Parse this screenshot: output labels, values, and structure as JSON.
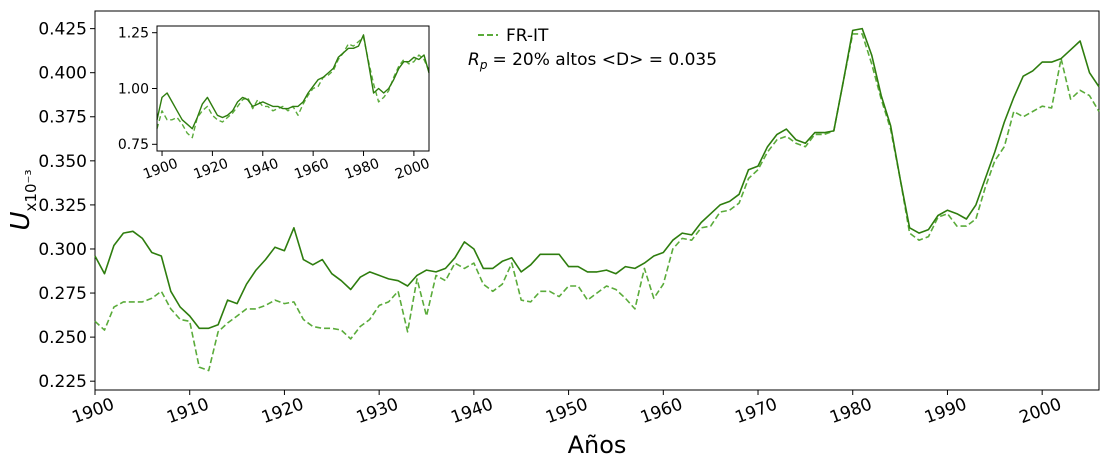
{
  "chart_data": [
    {
      "type": "line",
      "xlabel": "Años",
      "ylabel_main": "U",
      "ylabel_sub": "x10⁻³",
      "xlim": [
        1900,
        2006
      ],
      "ylim": [
        0.22,
        0.435
      ],
      "xticks": [
        1900,
        1910,
        1920,
        1930,
        1940,
        1950,
        1960,
        1970,
        1980,
        1990,
        2000
      ],
      "yticks": [
        "0.225",
        "0.250",
        "0.275",
        "0.300",
        "0.325",
        "0.350",
        "0.375",
        "0.400",
        "0.425"
      ],
      "legend": {
        "label": "FR-IT",
        "placement": "top-center"
      },
      "annotation": {
        "symbol": "R",
        "subscript": "p",
        "text": "= 20% altos  <D> = 0.035"
      },
      "colors": {
        "solid": "#2e7d0e",
        "dashed": "#5aab3a"
      },
      "series": [
        {
          "name": "FR-IT",
          "style": "dashed",
          "x": [
            1900,
            1901,
            1902,
            1903,
            1904,
            1905,
            1906,
            1907,
            1908,
            1909,
            1910,
            1911,
            1912,
            1913,
            1914,
            1915,
            1916,
            1917,
            1918,
            1919,
            1920,
            1921,
            1922,
            1923,
            1924,
            1925,
            1926,
            1927,
            1928,
            1929,
            1930,
            1931,
            1932,
            1933,
            1934,
            1935,
            1936,
            1937,
            1938,
            1939,
            1940,
            1941,
            1942,
            1943,
            1944,
            1945,
            1946,
            1947,
            1948,
            1949,
            1950,
            1951,
            1952,
            1953,
            1954,
            1955,
            1956,
            1957,
            1958,
            1959,
            1960,
            1961,
            1962,
            1963,
            1964,
            1965,
            1966,
            1967,
            1968,
            1969,
            1970,
            1971,
            1972,
            1973,
            1974,
            1975,
            1976,
            1977,
            1978,
            1979,
            1980,
            1981,
            1982,
            1983,
            1984,
            1985,
            1986,
            1987,
            1988,
            1989,
            1990,
            1991,
            1992,
            1993,
            1994,
            1995,
            1996,
            1997,
            1998,
            1999,
            2000,
            2001,
            2002,
            2003,
            2004,
            2005,
            2006
          ],
          "values": [
            0.259,
            0.254,
            0.267,
            0.27,
            0.27,
            0.27,
            0.272,
            0.276,
            0.266,
            0.26,
            0.259,
            0.233,
            0.231,
            0.253,
            0.258,
            0.262,
            0.266,
            0.266,
            0.268,
            0.271,
            0.269,
            0.27,
            0.26,
            0.256,
            0.255,
            0.255,
            0.254,
            0.249,
            0.256,
            0.26,
            0.268,
            0.27,
            0.276,
            0.253,
            0.283,
            0.262,
            0.285,
            0.282,
            0.292,
            0.289,
            0.292,
            0.28,
            0.276,
            0.28,
            0.292,
            0.271,
            0.27,
            0.276,
            0.276,
            0.273,
            0.279,
            0.279,
            0.271,
            0.275,
            0.279,
            0.277,
            0.272,
            0.266,
            0.289,
            0.272,
            0.28,
            0.3,
            0.306,
            0.305,
            0.312,
            0.313,
            0.321,
            0.322,
            0.326,
            0.34,
            0.345,
            0.355,
            0.362,
            0.364,
            0.36,
            0.358,
            0.365,
            0.365,
            0.367,
            0.395,
            0.422,
            0.422,
            0.405,
            0.385,
            0.368,
            0.34,
            0.309,
            0.305,
            0.307,
            0.318,
            0.32,
            0.313,
            0.313,
            0.317,
            0.335,
            0.35,
            0.358,
            0.378,
            0.375,
            0.378,
            0.381,
            0.38,
            0.408,
            0.385,
            0.39,
            0.387,
            0.378
          ]
        },
        {
          "name": "",
          "style": "solid",
          "x": [
            1900,
            1901,
            1902,
            1903,
            1904,
            1905,
            1906,
            1907,
            1908,
            1909,
            1910,
            1911,
            1912,
            1913,
            1914,
            1915,
            1916,
            1917,
            1918,
            1919,
            1920,
            1921,
            1922,
            1923,
            1924,
            1925,
            1926,
            1927,
            1928,
            1929,
            1930,
            1931,
            1932,
            1933,
            1934,
            1935,
            1936,
            1937,
            1938,
            1939,
            1940,
            1941,
            1942,
            1943,
            1944,
            1945,
            1946,
            1947,
            1948,
            1949,
            1950,
            1951,
            1952,
            1953,
            1954,
            1955,
            1956,
            1957,
            1958,
            1959,
            1960,
            1961,
            1962,
            1963,
            1964,
            1965,
            1966,
            1967,
            1968,
            1969,
            1970,
            1971,
            1972,
            1973,
            1974,
            1975,
            1976,
            1977,
            1978,
            1979,
            1980,
            1981,
            1982,
            1983,
            1984,
            1985,
            1986,
            1987,
            1988,
            1989,
            1990,
            1991,
            1992,
            1993,
            1994,
            1995,
            1996,
            1997,
            1998,
            1999,
            2000,
            2001,
            2002,
            2003,
            2004,
            2005,
            2006
          ],
          "values": [
            0.296,
            0.286,
            0.302,
            0.309,
            0.31,
            0.306,
            0.298,
            0.296,
            0.276,
            0.267,
            0.262,
            0.255,
            0.255,
            0.257,
            0.271,
            0.269,
            0.28,
            0.288,
            0.294,
            0.301,
            0.299,
            0.312,
            0.294,
            0.291,
            0.294,
            0.286,
            0.282,
            0.277,
            0.284,
            0.287,
            0.285,
            0.283,
            0.282,
            0.279,
            0.285,
            0.288,
            0.287,
            0.289,
            0.295,
            0.304,
            0.3,
            0.289,
            0.289,
            0.293,
            0.295,
            0.287,
            0.291,
            0.297,
            0.297,
            0.297,
            0.29,
            0.29,
            0.287,
            0.287,
            0.288,
            0.286,
            0.29,
            0.289,
            0.292,
            0.296,
            0.298,
            0.305,
            0.309,
            0.308,
            0.315,
            0.32,
            0.325,
            0.327,
            0.331,
            0.345,
            0.347,
            0.358,
            0.365,
            0.368,
            0.362,
            0.36,
            0.366,
            0.366,
            0.367,
            0.395,
            0.424,
            0.425,
            0.41,
            0.387,
            0.37,
            0.34,
            0.312,
            0.309,
            0.311,
            0.319,
            0.322,
            0.32,
            0.317,
            0.325,
            0.34,
            0.355,
            0.372,
            0.386,
            0.398,
            0.401,
            0.406,
            0.406,
            0.408,
            0.413,
            0.418,
            0.4,
            0.392
          ]
        }
      ]
    },
    {
      "type": "line",
      "role": "inset",
      "xlim": [
        1898,
        2006
      ],
      "ylim": [
        0.72,
        1.28
      ],
      "xticks": [
        1900,
        1920,
        1940,
        1960,
        1980,
        2000
      ],
      "yticks": [
        "0.75",
        "1.00",
        "1.25"
      ],
      "series": [
        {
          "name": "",
          "style": "dashed",
          "x": [
            1898,
            1900,
            1902,
            1904,
            1906,
            1908,
            1910,
            1912,
            1914,
            1916,
            1918,
            1920,
            1922,
            1924,
            1926,
            1928,
            1930,
            1932,
            1934,
            1936,
            1938,
            1940,
            1942,
            1944,
            1946,
            1948,
            1950,
            1952,
            1954,
            1956,
            1958,
            1960,
            1962,
            1964,
            1966,
            1968,
            1970,
            1972,
            1974,
            1976,
            1978,
            1980,
            1982,
            1984,
            1986,
            1988,
            1990,
            1992,
            1994,
            1996,
            1998,
            2000,
            2002,
            2004,
            2006
          ],
          "values": [
            0.82,
            0.9,
            0.86,
            0.86,
            0.87,
            0.84,
            0.8,
            0.78,
            0.87,
            0.9,
            0.92,
            0.88,
            0.86,
            0.85,
            0.87,
            0.89,
            0.92,
            0.95,
            0.96,
            0.91,
            0.95,
            0.92,
            0.92,
            0.9,
            0.91,
            0.92,
            0.9,
            0.92,
            0.88,
            0.93,
            0.97,
            1.0,
            1.01,
            1.05,
            1.06,
            1.08,
            1.13,
            1.16,
            1.2,
            1.19,
            1.21,
            1.23,
            1.12,
            1.02,
            0.94,
            0.96,
            0.99,
            1.05,
            1.1,
            1.13,
            1.11,
            1.12,
            1.15,
            1.13,
            1.08
          ]
        },
        {
          "name": "",
          "style": "solid",
          "x": [
            1898,
            1900,
            1902,
            1904,
            1906,
            1908,
            1910,
            1912,
            1914,
            1916,
            1918,
            1920,
            1922,
            1924,
            1926,
            1928,
            1930,
            1932,
            1934,
            1936,
            1938,
            1940,
            1942,
            1944,
            1946,
            1948,
            1950,
            1952,
            1954,
            1956,
            1958,
            1960,
            1962,
            1964,
            1966,
            1968,
            1970,
            1972,
            1974,
            1976,
            1978,
            1980,
            1982,
            1984,
            1986,
            1988,
            1990,
            1992,
            1994,
            1996,
            1998,
            2000,
            2002,
            2004,
            2006
          ],
          "values": [
            0.86,
            0.96,
            0.98,
            0.94,
            0.9,
            0.86,
            0.84,
            0.82,
            0.87,
            0.93,
            0.96,
            0.92,
            0.88,
            0.87,
            0.88,
            0.9,
            0.94,
            0.96,
            0.95,
            0.92,
            0.93,
            0.94,
            0.93,
            0.92,
            0.92,
            0.91,
            0.91,
            0.92,
            0.92,
            0.94,
            0.98,
            1.01,
            1.04,
            1.05,
            1.07,
            1.09,
            1.14,
            1.16,
            1.18,
            1.18,
            1.19,
            1.24,
            1.11,
            0.98,
            1.0,
            0.98,
            1.0,
            1.04,
            1.09,
            1.12,
            1.12,
            1.14,
            1.13,
            1.15,
            1.07
          ]
        }
      ]
    }
  ]
}
